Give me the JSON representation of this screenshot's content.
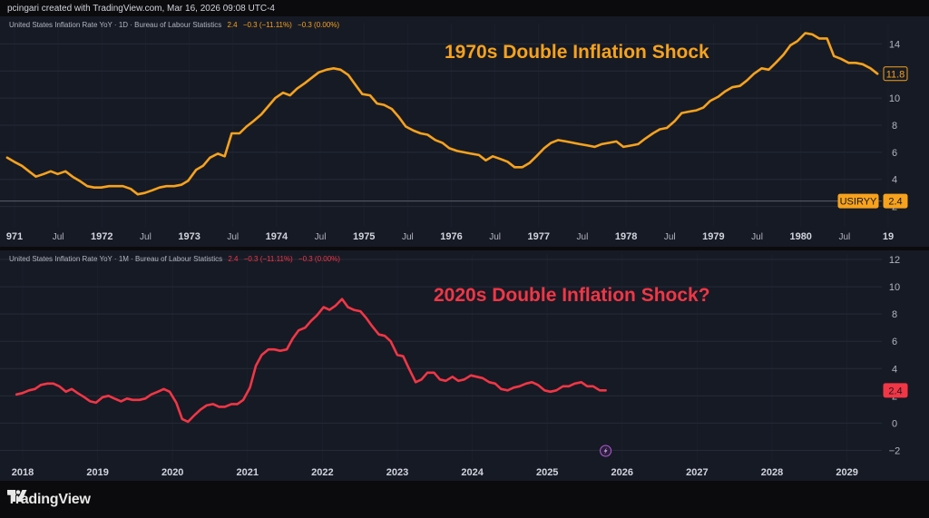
{
  "header": {
    "credit": "pcingari created with TradingView.com, Mar 16, 2026 09:08 UTC-4"
  },
  "footer": {
    "brand": "TradingView"
  },
  "colors": {
    "orange": "#f7a21c",
    "red": "#f23645",
    "background": "#161a25",
    "grid": "#252a37",
    "axis_text": "#b2b5be"
  },
  "chart_data": [
    {
      "type": "line",
      "legend": {
        "title": "United States Inflation Rate YoY · 1D · Bureau of Labour Statistics",
        "values": [
          "2.4",
          "−0.3 (−11.11%)",
          "−0.3 (0.00%)"
        ]
      },
      "title": "1970s Double Inflation Shock",
      "x_ticks": [
        "971",
        "Jul",
        "1972",
        "Jul",
        "1973",
        "Jul",
        "1974",
        "Jul",
        "1975",
        "Jul",
        "1976",
        "Jul",
        "1977",
        "Jul",
        "1978",
        "Jul",
        "1979",
        "Jul",
        "1980",
        "Jul",
        "19"
      ],
      "x_tick_bold": [
        true,
        false,
        true,
        false,
        true,
        false,
        true,
        false,
        true,
        false,
        true,
        false,
        true,
        false,
        true,
        false,
        true,
        false,
        true,
        false,
        true
      ],
      "x_range": [
        1970.98,
        1981.05
      ],
      "y_ticks": [
        "2",
        "4",
        "6",
        "8",
        "10",
        "12",
        "14"
      ],
      "ylim": [
        0.5,
        15.5
      ],
      "series": [
        {
          "name": "US inflation 1970s",
          "x": [
            1971.0,
            1971.08,
            1971.17,
            1971.25,
            1971.33,
            1971.42,
            1971.5,
            1971.58,
            1971.67,
            1971.75,
            1971.83,
            1971.92,
            1972.0,
            1972.08,
            1972.17,
            1972.25,
            1972.33,
            1972.42,
            1972.5,
            1972.58,
            1972.67,
            1972.75,
            1972.83,
            1972.92,
            1973.0,
            1973.08,
            1973.17,
            1973.25,
            1973.33,
            1973.42,
            1973.5,
            1973.58,
            1973.67,
            1973.75,
            1973.83,
            1973.92,
            1974.0,
            1974.08,
            1974.17,
            1974.25,
            1974.33,
            1974.42,
            1974.5,
            1974.58,
            1974.67,
            1974.75,
            1974.83,
            1974.92,
            1975.0,
            1975.08,
            1975.17,
            1975.25,
            1975.33,
            1975.42,
            1975.5,
            1975.58,
            1975.67,
            1975.75,
            1975.83,
            1975.92,
            1976.0,
            1976.08,
            1976.17,
            1976.25,
            1976.33,
            1976.42,
            1976.5,
            1976.58,
            1976.67,
            1976.75,
            1976.83,
            1976.92,
            1977.0,
            1977.08,
            1977.17,
            1977.25,
            1977.33,
            1977.42,
            1977.5,
            1977.58,
            1977.67,
            1977.75,
            1977.83,
            1977.92,
            1978.0,
            1978.08,
            1978.17,
            1978.25,
            1978.33,
            1978.42,
            1978.5,
            1978.58,
            1978.67,
            1978.75,
            1978.83,
            1978.92,
            1979.0,
            1979.08,
            1979.17,
            1979.25,
            1979.33,
            1979.42,
            1979.5,
            1979.58,
            1979.67,
            1979.75,
            1979.83,
            1979.92,
            1980.0,
            1980.08,
            1980.17,
            1980.25,
            1980.33,
            1980.42,
            1980.5,
            1980.58,
            1980.67,
            1980.75,
            1980.83,
            1980.92,
            1981.0
          ],
          "values": [
            5.6,
            5.3,
            5.0,
            4.6,
            4.2,
            4.4,
            4.6,
            4.4,
            4.6,
            4.2,
            3.9,
            3.5,
            3.4,
            3.4,
            3.5,
            3.5,
            3.5,
            3.3,
            2.9,
            3.0,
            3.2,
            3.4,
            3.5,
            3.5,
            3.6,
            3.9,
            4.7,
            5.0,
            5.6,
            5.9,
            5.7,
            7.4,
            7.4,
            7.9,
            8.3,
            8.8,
            9.4,
            10.0,
            10.4,
            10.2,
            10.7,
            11.1,
            11.5,
            11.9,
            12.1,
            12.2,
            12.1,
            11.7,
            11.0,
            10.3,
            10.2,
            9.6,
            9.5,
            9.2,
            8.6,
            7.9,
            7.6,
            7.4,
            7.3,
            6.9,
            6.7,
            6.3,
            6.1,
            6.0,
            5.9,
            5.8,
            5.4,
            5.7,
            5.5,
            5.3,
            4.9,
            4.9,
            5.2,
            5.7,
            6.3,
            6.7,
            6.9,
            6.8,
            6.7,
            6.6,
            6.5,
            6.4,
            6.6,
            6.7,
            6.8,
            6.4,
            6.5,
            6.6,
            7.0,
            7.4,
            7.7,
            7.8,
            8.3,
            8.9,
            9.0,
            9.1,
            9.3,
            9.8,
            10.1,
            10.5,
            10.8,
            10.9,
            11.3,
            11.8,
            12.2,
            12.1,
            12.6,
            13.2,
            13.9,
            14.2,
            14.8,
            14.7,
            14.4,
            14.4,
            13.1,
            12.9,
            12.6,
            12.6,
            12.5,
            12.2,
            11.8
          ]
        },
        {
          "name": "Reference line 2.4",
          "values": [
            2.4
          ]
        }
      ],
      "price_labels": [
        {
          "text": "11.8",
          "value": 11.8,
          "style": "outline"
        },
        {
          "text": "USIRYY",
          "value": 2.4,
          "style": "filled"
        },
        {
          "text": "2.4",
          "value": 2.4,
          "style": "filled"
        }
      ]
    },
    {
      "type": "line",
      "legend": {
        "title": "United States Inflation Rate YoY · 1M · Bureau of Labour Statistics",
        "values": [
          "2.4",
          "−0.3 (−11.11%)",
          "−0.3 (0.00%)"
        ]
      },
      "title": "2020s Double Inflation Shock?",
      "x_ticks": [
        "2018",
        "2019",
        "2020",
        "2021",
        "2022",
        "2023",
        "2024",
        "2025",
        "2026",
        "2027",
        "2028",
        "2029"
      ],
      "x_range": [
        2017.85,
        2029.75
      ],
      "y_ticks": [
        "−2",
        "0",
        "2",
        "4",
        "6",
        "8",
        "10",
        "12"
      ],
      "ylim": [
        -2.9,
        12.4
      ],
      "series": [
        {
          "name": "US inflation 2020s",
          "x": [
            2018.0,
            2018.08,
            2018.17,
            2018.25,
            2018.33,
            2018.42,
            2018.5,
            2018.58,
            2018.67,
            2018.75,
            2018.83,
            2018.92,
            2019.0,
            2019.08,
            2019.17,
            2019.25,
            2019.33,
            2019.42,
            2019.5,
            2019.58,
            2019.67,
            2019.75,
            2019.83,
            2019.92,
            2020.0,
            2020.08,
            2020.17,
            2020.25,
            2020.33,
            2020.42,
            2020.5,
            2020.58,
            2020.67,
            2020.75,
            2020.83,
            2020.92,
            2021.0,
            2021.08,
            2021.17,
            2021.25,
            2021.33,
            2021.42,
            2021.5,
            2021.58,
            2021.67,
            2021.75,
            2021.83,
            2021.92,
            2022.0,
            2022.08,
            2022.17,
            2022.25,
            2022.33,
            2022.42,
            2022.5,
            2022.58,
            2022.67,
            2022.75,
            2022.83,
            2022.92,
            2023.0,
            2023.08,
            2023.17,
            2023.25,
            2023.33,
            2023.42,
            2023.5,
            2023.58,
            2023.67,
            2023.75,
            2023.83,
            2023.92,
            2024.0,
            2024.08,
            2024.17,
            2024.25,
            2024.33,
            2024.42,
            2024.5,
            2024.58,
            2024.67,
            2024.75,
            2024.83,
            2024.92,
            2025.0,
            2025.08,
            2025.17,
            2025.25,
            2025.33,
            2025.42,
            2025.5,
            2025.58,
            2025.67,
            2025.75,
            2025.83,
            2025.92,
            2026.0
          ],
          "values": [
            2.1,
            2.2,
            2.4,
            2.5,
            2.8,
            2.9,
            2.9,
            2.7,
            2.3,
            2.5,
            2.2,
            1.9,
            1.6,
            1.5,
            1.9,
            2.0,
            1.8,
            1.6,
            1.8,
            1.7,
            1.7,
            1.8,
            2.1,
            2.3,
            2.5,
            2.3,
            1.5,
            0.3,
            0.1,
            0.6,
            1.0,
            1.3,
            1.4,
            1.2,
            1.2,
            1.4,
            1.4,
            1.7,
            2.6,
            4.2,
            5.0,
            5.4,
            5.4,
            5.3,
            5.4,
            6.2,
            6.8,
            7.0,
            7.5,
            7.9,
            8.5,
            8.3,
            8.6,
            9.1,
            8.5,
            8.3,
            8.2,
            7.7,
            7.1,
            6.5,
            6.4,
            6.0,
            5.0,
            4.9,
            4.0,
            3.0,
            3.2,
            3.7,
            3.7,
            3.2,
            3.1,
            3.4,
            3.1,
            3.2,
            3.5,
            3.4,
            3.3,
            3.0,
            2.9,
            2.5,
            2.4,
            2.6,
            2.7,
            2.9,
            3.0,
            2.8,
            2.4,
            2.3,
            2.4,
            2.7,
            2.7,
            2.9,
            3.0,
            2.7,
            2.7,
            2.4,
            2.4
          ]
        }
      ],
      "price_labels": [
        {
          "text": "2.4",
          "value": 2.4,
          "style": "filled"
        }
      ],
      "marker": {
        "icon": "lightning-icon",
        "x": 2026.0
      }
    }
  ]
}
